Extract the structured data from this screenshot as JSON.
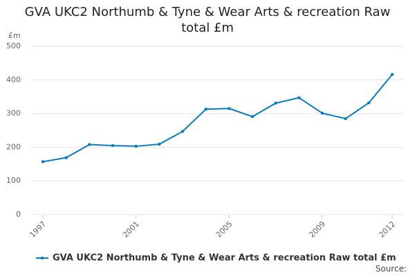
{
  "chart_data": {
    "type": "line",
    "title": "GVA UKC2 Northumb & Tyne & Wear Arts & recreation Raw total £m",
    "y_label": "£m",
    "source_label": "Source:",
    "x": [
      1997,
      1998,
      1999,
      2000,
      2001,
      2002,
      2003,
      2004,
      2005,
      2006,
      2007,
      2008,
      2009,
      2010,
      2011,
      2012
    ],
    "series": [
      {
        "name": "GVA UKC2 Northumb & Tyne & Wear Arts & recreation Raw total £m",
        "color": "#0a7bbd",
        "values": [
          157,
          169,
          208,
          205,
          203,
          209,
          247,
          313,
          315,
          291,
          331,
          347,
          301,
          285,
          332,
          416
        ]
      }
    ],
    "xlim": [
      1997,
      2012
    ],
    "xticks": [
      1997,
      2001,
      2005,
      2009,
      2012
    ],
    "ylim": [
      0,
      500
    ],
    "yticks": [
      0,
      100,
      200,
      300,
      400,
      500
    ],
    "grid": true
  }
}
